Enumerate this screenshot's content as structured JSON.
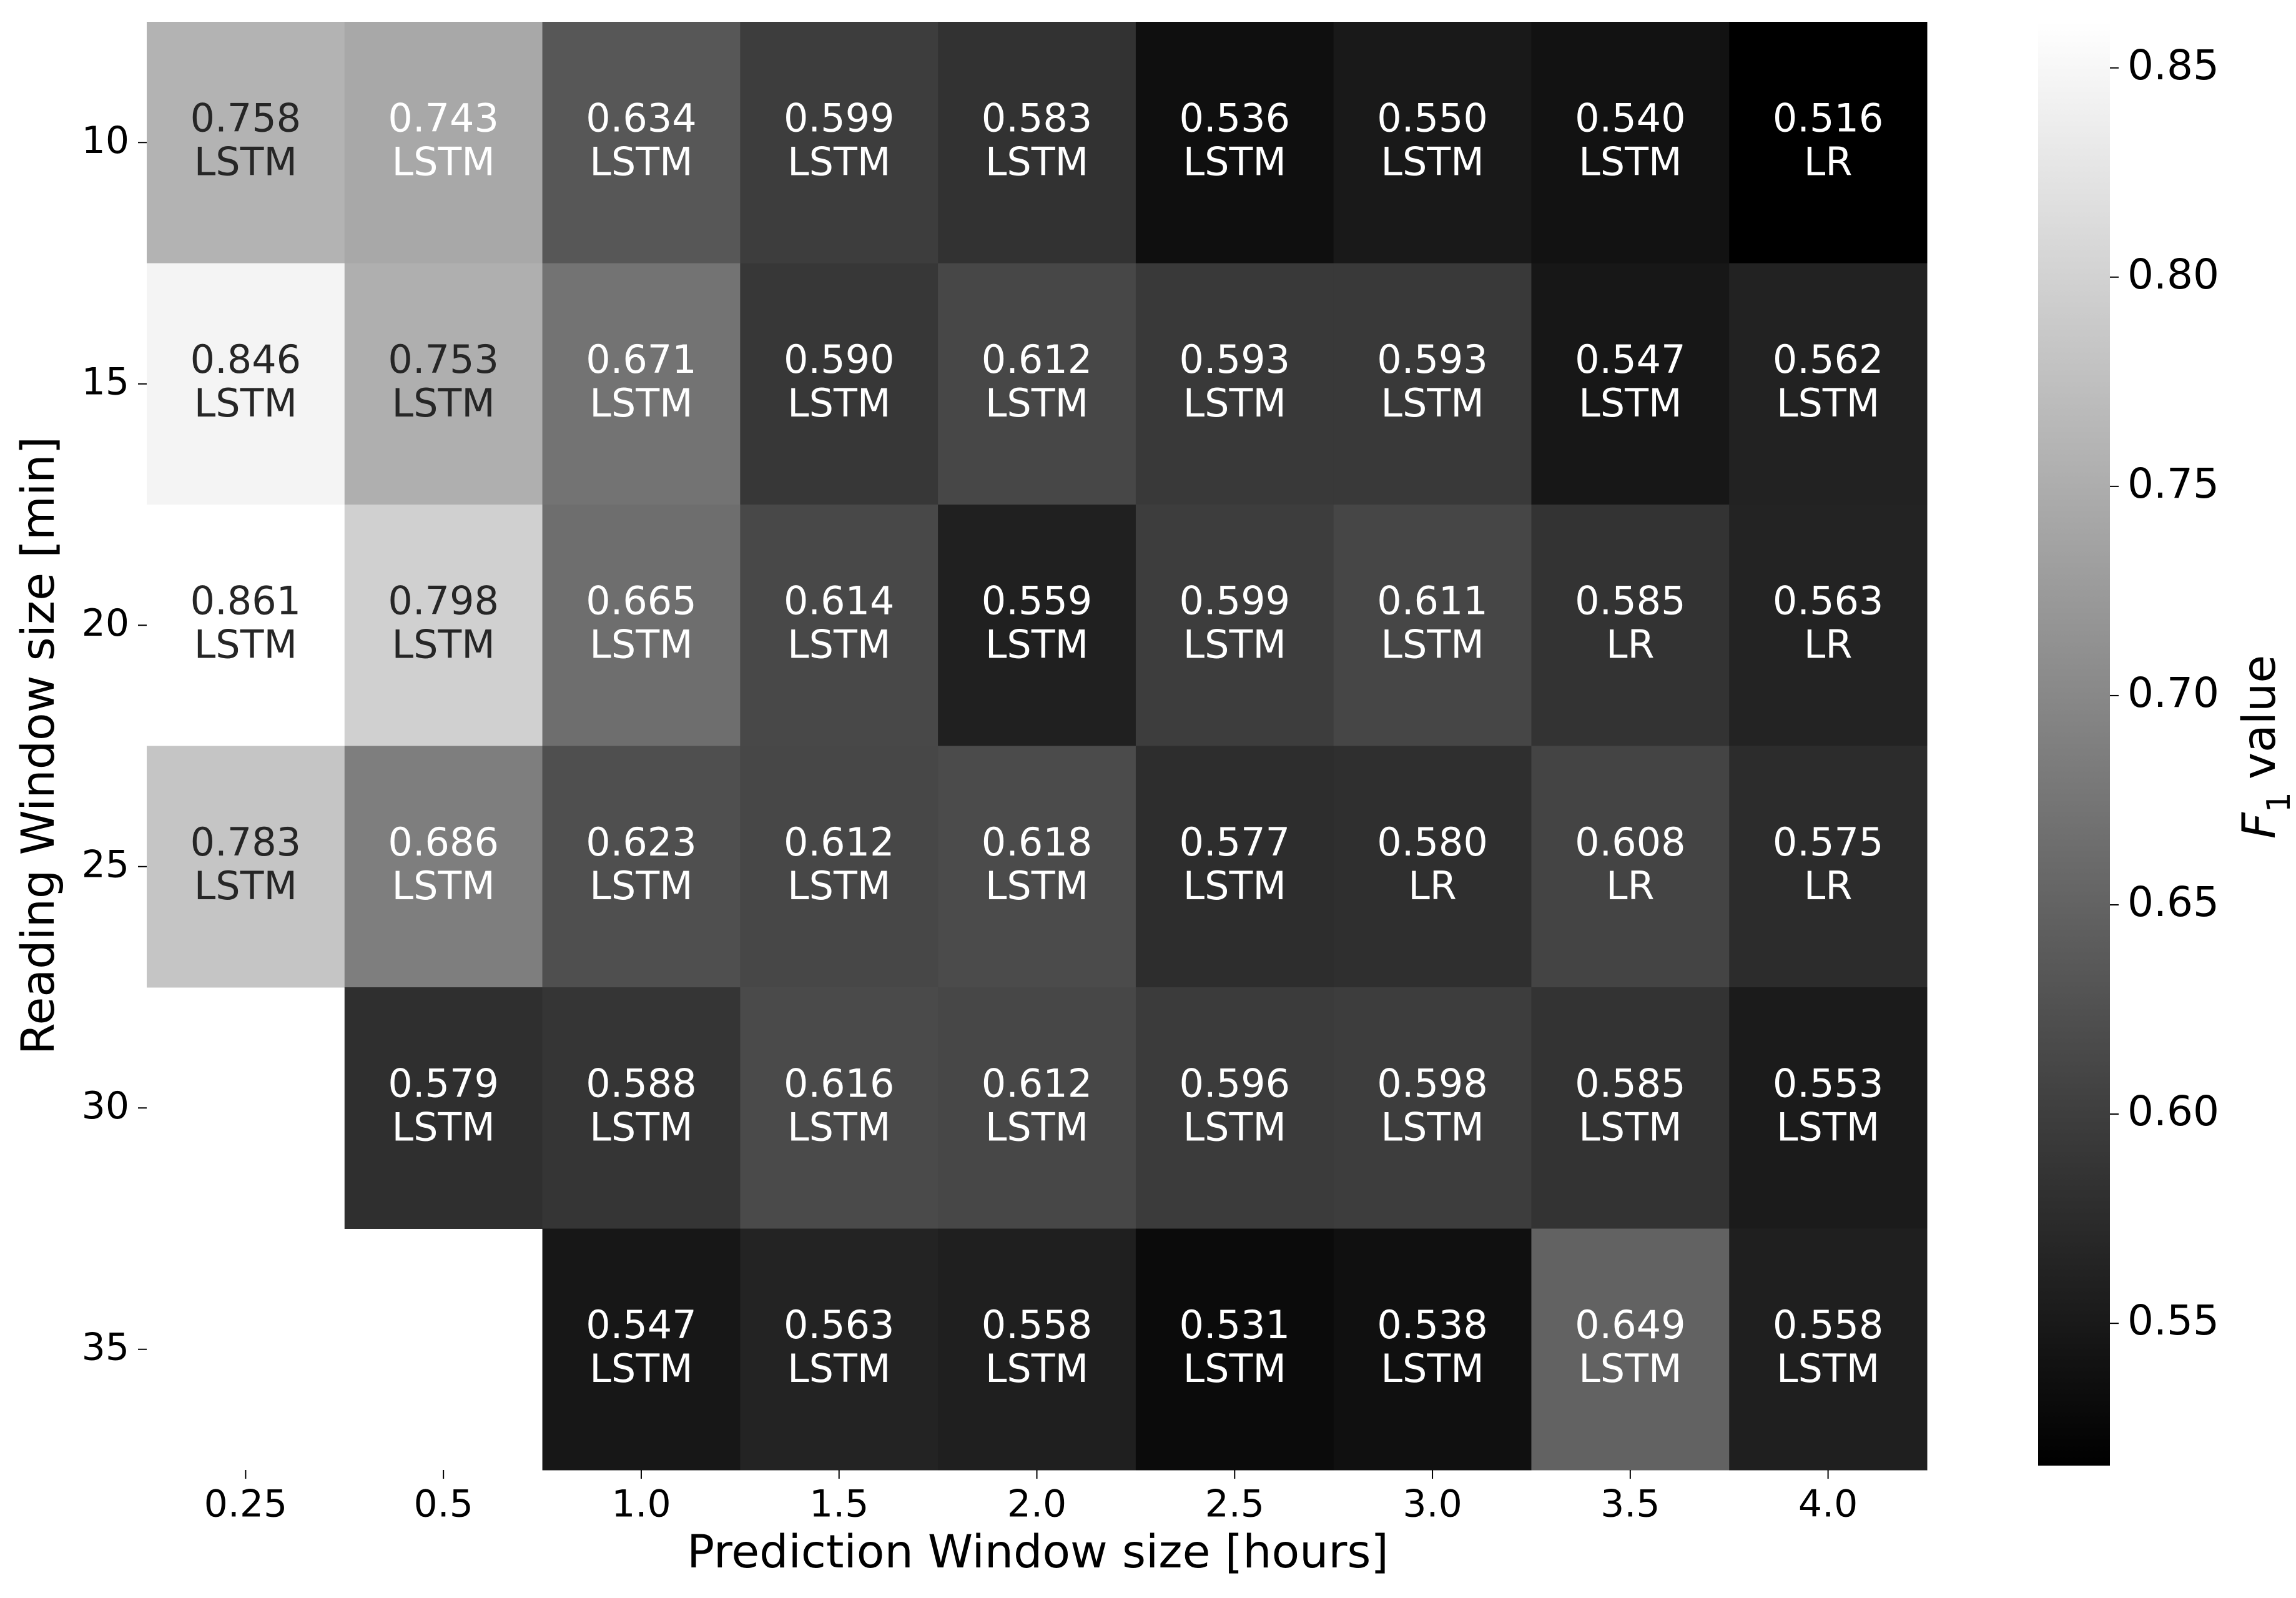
{
  "chart_data": {
    "type": "heatmap",
    "x_label": "Prediction Window size [hours]",
    "y_label": "Reading Window size [min]",
    "x_categories": [
      "0.25",
      "0.5",
      "1.0",
      "1.5",
      "2.0",
      "2.5",
      "3.0",
      "3.5",
      "4.0"
    ],
    "y_categories": [
      "10",
      "15",
      "20",
      "25",
      "30",
      "35"
    ],
    "values": [
      [
        0.758,
        0.743,
        0.634,
        0.599,
        0.583,
        0.536,
        0.55,
        0.54,
        0.516
      ],
      [
        0.846,
        0.753,
        0.671,
        0.59,
        0.612,
        0.593,
        0.593,
        0.547,
        0.562
      ],
      [
        0.861,
        0.798,
        0.665,
        0.614,
        0.559,
        0.599,
        0.611,
        0.585,
        0.563
      ],
      [
        0.783,
        0.686,
        0.623,
        0.612,
        0.618,
        0.577,
        0.58,
        0.608,
        0.575
      ],
      [
        null,
        0.579,
        0.588,
        0.616,
        0.612,
        0.596,
        0.598,
        0.585,
        0.553
      ],
      [
        null,
        null,
        0.547,
        0.563,
        0.558,
        0.531,
        0.538,
        0.649,
        0.558
      ]
    ],
    "value_labels": [
      [
        "0.758",
        "0.743",
        "0.634",
        "0.599",
        "0.583",
        "0.536",
        "0.550",
        "0.540",
        "0.516"
      ],
      [
        "0.846",
        "0.753",
        "0.671",
        "0.590",
        "0.612",
        "0.593",
        "0.593",
        "0.547",
        "0.562"
      ],
      [
        "0.861",
        "0.798",
        "0.665",
        "0.614",
        "0.559",
        "0.599",
        "0.611",
        "0.585",
        "0.563"
      ],
      [
        "0.783",
        "0.686",
        "0.623",
        "0.612",
        "0.618",
        "0.577",
        "0.580",
        "0.608",
        "0.575"
      ],
      [
        null,
        "0.579",
        "0.588",
        "0.616",
        "0.612",
        "0.596",
        "0.598",
        "0.585",
        "0.553"
      ],
      [
        null,
        null,
        "0.547",
        "0.563",
        "0.558",
        "0.531",
        "0.538",
        "0.649",
        "0.558"
      ]
    ],
    "models": [
      [
        "LSTM",
        "LSTM",
        "LSTM",
        "LSTM",
        "LSTM",
        "LSTM",
        "LSTM",
        "LSTM",
        "LR"
      ],
      [
        "LSTM",
        "LSTM",
        "LSTM",
        "LSTM",
        "LSTM",
        "LSTM",
        "LSTM",
        "LSTM",
        "LSTM"
      ],
      [
        "LSTM",
        "LSTM",
        "LSTM",
        "LSTM",
        "LSTM",
        "LSTM",
        "LSTM",
        "LR",
        "LR"
      ],
      [
        "LSTM",
        "LSTM",
        "LSTM",
        "LSTM",
        "LSTM",
        "LSTM",
        "LR",
        "LR",
        "LR"
      ],
      [
        null,
        "LSTM",
        "LSTM",
        "LSTM",
        "LSTM",
        "LSTM",
        "LSTM",
        "LSTM",
        "LSTM"
      ],
      [
        null,
        null,
        "LSTM",
        "LSTM",
        "LSTM",
        "LSTM",
        "LSTM",
        "LSTM",
        "LSTM"
      ]
    ],
    "cmap": "gray",
    "clim": [
      0.516,
      0.861
    ],
    "cticks": [
      0.55,
      {
        "value": 0.6,
        "label": "0.60"
      },
      0.65,
      {
        "value": 0.7,
        "label": "0.70"
      },
      0.75,
      {
        "value": 0.8,
        "label": "0.80"
      },
      0.85
    ],
    "colorbar_label": [
      "F",
      "1",
      "value"
    ]
  }
}
